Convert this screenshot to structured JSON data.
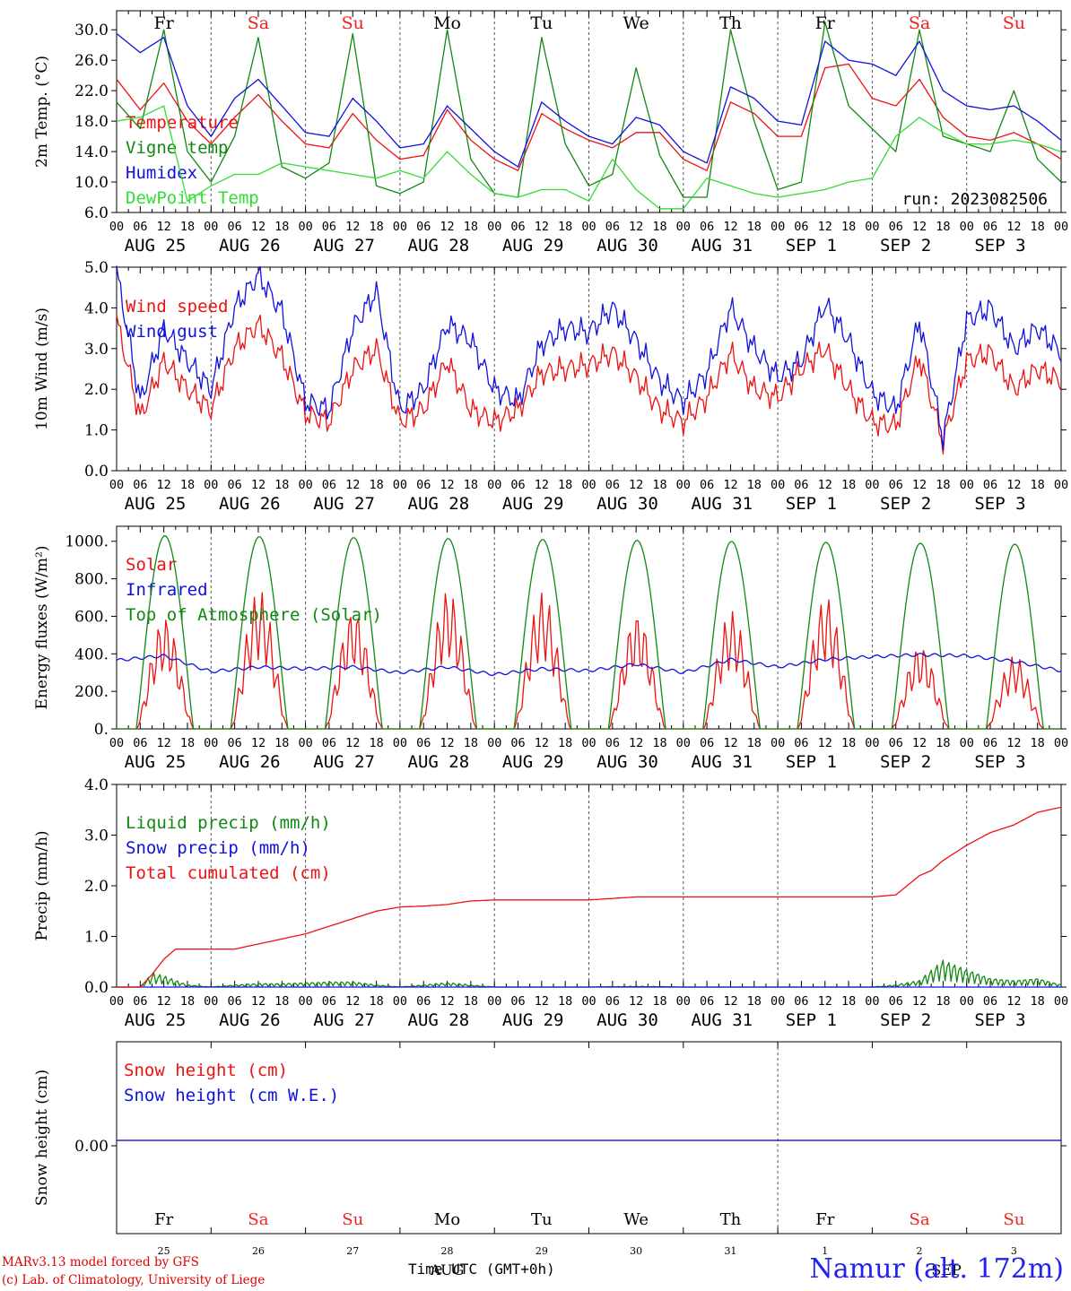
{
  "chart_data": [
    {
      "type": "line",
      "ylabel": "2m Temp. (°C)",
      "ylim": [
        6.0,
        32.5
      ],
      "yticks": [
        "6.0",
        "10.0",
        "14.0",
        "18.0",
        "22.0",
        "26.0",
        "30.0"
      ],
      "x_start": "2023-08-25 00 UTC",
      "x_hours": 240,
      "day_names_top": [
        "Fr",
        "Sa",
        "Su",
        "Mo",
        "Tu",
        "We",
        "Th",
        "Fr",
        "Sa",
        "Su"
      ],
      "weekend_color": "#ee2222",
      "annotation": "run: 2023082506",
      "grid": "vertical dashed lines at day boundaries",
      "series": [
        {
          "name": "Temperature",
          "color": "#ee1111",
          "x_hours": [
            0,
            6,
            12,
            18,
            24,
            30,
            36,
            42,
            48,
            54,
            60,
            66,
            72,
            78,
            84,
            90,
            96,
            102,
            108,
            114,
            120,
            126,
            132,
            138,
            144,
            150,
            156,
            162,
            168,
            174,
            180,
            186,
            192,
            198,
            204,
            210,
            216,
            222,
            228,
            234,
            240
          ],
          "values": [
            23.5,
            19.5,
            23.0,
            18.0,
            15.0,
            18.5,
            21.5,
            18.0,
            15.0,
            14.5,
            19.0,
            15.5,
            13.0,
            13.5,
            19.5,
            15.5,
            13.0,
            11.5,
            19.0,
            17.0,
            15.5,
            14.5,
            16.5,
            16.5,
            13.0,
            11.5,
            20.5,
            19.0,
            16.0,
            16.0,
            25.0,
            25.5,
            21.0,
            20.0,
            23.5,
            18.5,
            16.0,
            15.5,
            16.5,
            15.0,
            13.0
          ]
        },
        {
          "name": "Vigne temp",
          "color": "#118811",
          "x_hours": [
            0,
            6,
            12,
            18,
            24,
            30,
            36,
            42,
            48,
            54,
            60,
            66,
            72,
            78,
            84,
            90,
            96,
            102,
            108,
            114,
            120,
            126,
            132,
            138,
            144,
            150,
            156,
            162,
            168,
            174,
            180,
            186,
            192,
            198,
            204,
            210,
            216,
            222,
            228,
            234,
            240
          ],
          "values": [
            20.5,
            17.0,
            30.0,
            14.0,
            10.0,
            16.0,
            29.0,
            12.0,
            10.5,
            12.5,
            29.5,
            9.5,
            8.5,
            10.0,
            30.0,
            13.0,
            8.5,
            8.0,
            29.0,
            15.0,
            9.5,
            11.0,
            25.0,
            13.5,
            8.0,
            8.0,
            30.0,
            18.0,
            9.0,
            10.0,
            31.0,
            20.0,
            17.0,
            14.0,
            30.0,
            16.0,
            15.0,
            14.0,
            22.0,
            13.0,
            10.0
          ]
        },
        {
          "name": "Humidex",
          "color": "#1111dd",
          "x_hours": [
            0,
            6,
            12,
            18,
            24,
            30,
            36,
            42,
            48,
            54,
            60,
            66,
            72,
            78,
            84,
            90,
            96,
            102,
            108,
            114,
            120,
            126,
            132,
            138,
            144,
            150,
            156,
            162,
            168,
            174,
            180,
            186,
            192,
            198,
            204,
            210,
            216,
            222,
            228,
            234,
            240
          ],
          "values": [
            29.5,
            27.0,
            29.0,
            20.0,
            16.0,
            21.0,
            23.5,
            20.0,
            16.5,
            16.0,
            21.0,
            18.0,
            14.5,
            15.0,
            20.0,
            17.0,
            14.0,
            12.0,
            20.5,
            18.0,
            16.0,
            15.0,
            18.5,
            17.5,
            14.0,
            12.5,
            22.5,
            21.0,
            18.0,
            17.5,
            28.5,
            26.0,
            25.5,
            24.0,
            28.5,
            22.0,
            20.0,
            19.5,
            20.0,
            18.0,
            15.5
          ]
        },
        {
          "name": "DewPoint Temp",
          "color": "#33dd33",
          "x_hours": [
            0,
            6,
            12,
            18,
            24,
            30,
            36,
            42,
            48,
            54,
            60,
            66,
            72,
            78,
            84,
            90,
            96,
            102,
            108,
            114,
            120,
            126,
            132,
            138,
            144,
            150,
            156,
            162,
            168,
            174,
            180,
            186,
            192,
            198,
            204,
            210,
            216,
            222,
            228,
            234,
            240
          ],
          "values": [
            18.0,
            18.5,
            20.0,
            7.5,
            9.5,
            11.0,
            11.0,
            12.5,
            12.0,
            11.5,
            11.0,
            10.5,
            11.5,
            10.5,
            14.0,
            11.0,
            8.5,
            8.0,
            9.0,
            9.0,
            7.5,
            13.0,
            9.0,
            6.5,
            6.5,
            10.5,
            9.5,
            8.5,
            8.0,
            8.5,
            9.0,
            10.0,
            10.5,
            16.0,
            18.5,
            16.5,
            15.0,
            15.0,
            15.5,
            15.0,
            14.0
          ]
        }
      ]
    },
    {
      "type": "line",
      "ylabel": "10m Wind (m/s)",
      "ylim": [
        0.0,
        5.0
      ],
      "yticks": [
        "0.0",
        "1.0",
        "2.0",
        "3.0",
        "4.0",
        "5.0"
      ],
      "series": [
        {
          "name": "Wind speed",
          "color": "#ee1111",
          "x_hours": [
            0,
            6,
            12,
            18,
            24,
            30,
            36,
            42,
            48,
            54,
            60,
            66,
            72,
            78,
            84,
            90,
            96,
            102,
            108,
            114,
            120,
            126,
            132,
            138,
            144,
            150,
            156,
            162,
            168,
            174,
            180,
            186,
            192,
            198,
            204,
            210,
            216,
            222,
            228,
            234,
            240
          ],
          "values": [
            3.7,
            1.3,
            2.7,
            2.0,
            1.5,
            3.0,
            3.6,
            2.8,
            1.4,
            1.2,
            2.5,
            3.0,
            1.2,
            1.5,
            2.7,
            1.5,
            1.2,
            1.5,
            2.4,
            2.5,
            2.6,
            2.9,
            2.3,
            1.5,
            1.2,
            1.8,
            2.9,
            2.0,
            1.8,
            2.5,
            3.0,
            2.0,
            1.2,
            1.1,
            2.8,
            0.7,
            2.7,
            2.9,
            2.0,
            2.5,
            2.2
          ]
        },
        {
          "name": "Wind gust",
          "color": "#1111dd",
          "x_hours": [
            0,
            6,
            12,
            18,
            24,
            30,
            36,
            42,
            48,
            54,
            60,
            66,
            72,
            78,
            84,
            90,
            96,
            102,
            108,
            114,
            120,
            126,
            132,
            138,
            144,
            150,
            156,
            162,
            168,
            174,
            180,
            186,
            192,
            198,
            204,
            210,
            216,
            222,
            228,
            234,
            240
          ],
          "values": [
            4.9,
            1.7,
            3.5,
            2.7,
            2.0,
            4.0,
            4.8,
            3.9,
            1.7,
            1.5,
            3.5,
            4.4,
            1.5,
            2.0,
            3.6,
            3.2,
            2.0,
            1.7,
            3.1,
            3.5,
            3.4,
            4.0,
            3.2,
            2.2,
            1.7,
            2.4,
            4.0,
            3.0,
            2.3,
            2.7,
            4.1,
            3.2,
            1.9,
            1.5,
            3.7,
            0.8,
            3.7,
            4.0,
            3.0,
            3.5,
            2.9
          ]
        }
      ]
    },
    {
      "type": "line",
      "ylabel": "Energy fluxes (W/m²)",
      "ylim": [
        0,
        1080
      ],
      "yticks": [
        "0.",
        "200.",
        "400.",
        "600.",
        "800.",
        "1000."
      ],
      "series": [
        {
          "name": "Solar",
          "color": "#ee1111",
          "daily_peak": [
            600,
            740,
            640,
            745,
            730,
            620,
            630,
            710,
            450,
            390
          ]
        },
        {
          "name": "Infrared",
          "color": "#1111dd",
          "x_hours": [
            0,
            12,
            24,
            36,
            48,
            60,
            72,
            84,
            96,
            108,
            120,
            132,
            144,
            156,
            168,
            180,
            192,
            204,
            216,
            228,
            240
          ],
          "values": [
            365,
            390,
            305,
            330,
            320,
            330,
            300,
            330,
            290,
            320,
            310,
            345,
            300,
            370,
            330,
            370,
            385,
            395,
            390,
            360,
            310
          ]
        },
        {
          "name": "Top of Atmosphere (Solar)",
          "color": "#118811",
          "daily_peak": [
            1030,
            1025,
            1020,
            1015,
            1010,
            1005,
            1000,
            995,
            990,
            985
          ]
        }
      ]
    },
    {
      "type": "line",
      "ylabel": "Precip (mm/h)",
      "ylim": [
        0.0,
        4.0
      ],
      "yticks": [
        "0.0",
        "1.0",
        "2.0",
        "3.0",
        "4.0"
      ],
      "series": [
        {
          "name": "Liquid precip (mm/h)",
          "color": "#118811",
          "x_hours": [
            0,
            6,
            9,
            12,
            18,
            24,
            30,
            36,
            42,
            48,
            54,
            60,
            66,
            72,
            84,
            96,
            108,
            120,
            132,
            144,
            156,
            168,
            180,
            192,
            198,
            204,
            210,
            216,
            222,
            228,
            234,
            240
          ],
          "values": [
            0.0,
            0.0,
            0.3,
            0.25,
            0.05,
            0.0,
            0.05,
            0.08,
            0.08,
            0.1,
            0.12,
            0.12,
            0.05,
            0.0,
            0.1,
            0.0,
            0.0,
            0.0,
            0.02,
            0.0,
            0.0,
            0.0,
            0.0,
            0.0,
            0.05,
            0.15,
            0.6,
            0.4,
            0.2,
            0.15,
            0.2,
            0.05
          ]
        },
        {
          "name": "Snow precip (mm/h)",
          "color": "#1111dd",
          "x_hours": [
            0,
            240
          ],
          "values": [
            0.0,
            0.0
          ]
        },
        {
          "name": "Total cumulated (cm)",
          "color": "#ee1111",
          "x_hours": [
            0,
            6,
            9,
            12,
            15,
            18,
            24,
            30,
            36,
            42,
            48,
            54,
            60,
            66,
            72,
            78,
            84,
            90,
            96,
            108,
            120,
            132,
            144,
            156,
            168,
            180,
            192,
            198,
            204,
            207,
            210,
            216,
            222,
            228,
            234,
            240
          ],
          "values": [
            0.0,
            0.0,
            0.25,
            0.55,
            0.75,
            0.75,
            0.75,
            0.75,
            0.85,
            0.95,
            1.05,
            1.2,
            1.35,
            1.5,
            1.58,
            1.6,
            1.63,
            1.7,
            1.72,
            1.72,
            1.72,
            1.78,
            1.78,
            1.78,
            1.78,
            1.78,
            1.78,
            1.82,
            2.2,
            2.3,
            2.5,
            2.8,
            3.05,
            3.2,
            3.45,
            3.55
          ]
        }
      ]
    },
    {
      "type": "line",
      "ylabel": "Snow height (cm)",
      "yticks": [
        "0.00"
      ],
      "series": [
        {
          "name": "Snow height (cm)",
          "color": "#ee1111",
          "x_hours": [
            0,
            240
          ],
          "values": [
            0.0,
            0.0
          ]
        },
        {
          "name": "Snow height (cm W.E.)",
          "color": "#1111dd",
          "x_hours": [
            0,
            240
          ],
          "values": [
            0.0,
            0.0
          ]
        }
      ],
      "day_names": [
        "Fr",
        "Sa",
        "Su",
        "Mo",
        "Tu",
        "We",
        "Th",
        "Fr",
        "Sa",
        "Su"
      ],
      "day_numbers": [
        "25",
        "26",
        "27",
        "28",
        "29",
        "30",
        "31",
        "1",
        "2",
        "3"
      ],
      "month_labels": [
        "AUG",
        "SEP"
      ]
    }
  ],
  "x_axis": {
    "hour_ticks": [
      "00",
      "06",
      "12",
      "18"
    ],
    "date_labels": [
      "AUG 25",
      "AUG 26",
      "AUG 27",
      "AUG 28",
      "AUG 29",
      "AUG 30",
      "AUG 31",
      "SEP  1",
      "SEP  2",
      "SEP  3"
    ],
    "title": "Time UTC (GMT+0h)"
  },
  "footer": {
    "line1": "MARv3.13 model forced by GFS",
    "line2": "(c) Lab. of Climatology, University of Liege",
    "station": "Namur (alt. 172m)"
  }
}
